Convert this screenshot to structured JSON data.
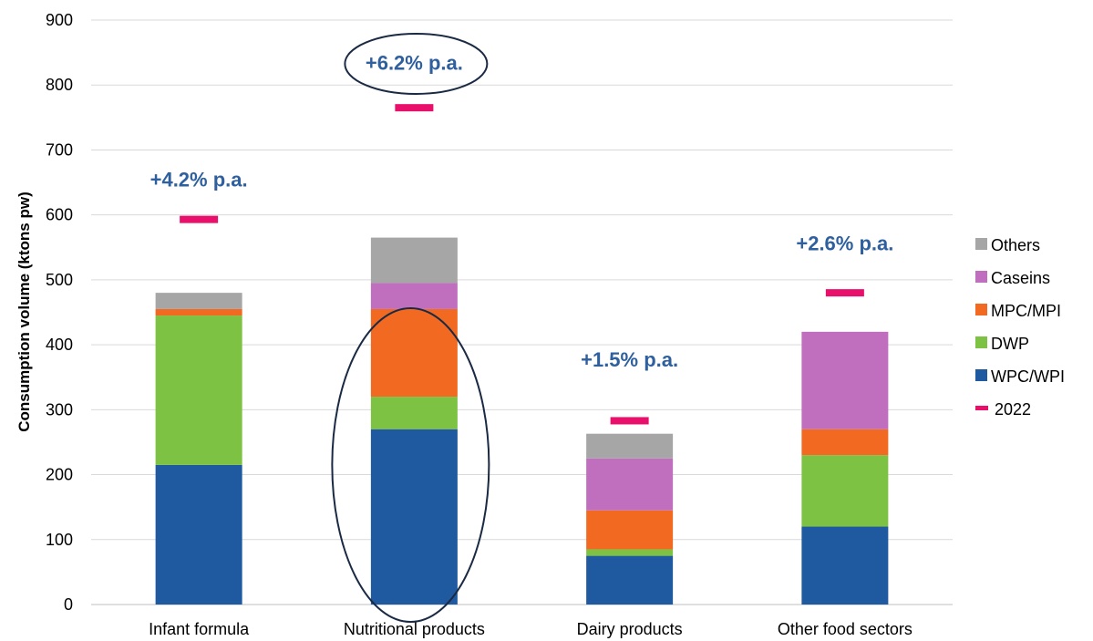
{
  "chart_data": {
    "type": "bar",
    "stacked": true,
    "ylabel": "Consumption volume (ktons pw)",
    "xlabel": "",
    "title": "",
    "ylim": [
      0,
      900
    ],
    "yticks": [
      0,
      100,
      200,
      300,
      400,
      500,
      600,
      700,
      800,
      900
    ],
    "grid": true,
    "legend_position": "right",
    "categories": [
      "Infant formula",
      "Nutritional products",
      "Dairy products",
      "Other food sectors"
    ],
    "series": [
      {
        "name": "WPC/WPI",
        "color": "#1F5AA1",
        "values": [
          215,
          270,
          75,
          120
        ]
      },
      {
        "name": "DWP",
        "color": "#7DC242",
        "values": [
          230,
          50,
          10,
          110
        ]
      },
      {
        "name": "MPC/MPI",
        "color": "#F26A21",
        "values": [
          10,
          135,
          60,
          40
        ]
      },
      {
        "name": "Caseins",
        "color": "#C06FBF",
        "values": [
          0,
          40,
          80,
          150
        ]
      },
      {
        "name": "Others",
        "color": "#A6A6A6",
        "values": [
          25,
          70,
          38,
          0
        ]
      }
    ],
    "markers": {
      "name": "2022",
      "color": "#E8106B",
      "values": [
        593,
        765,
        283,
        480
      ]
    },
    "growth_labels": [
      "+4.2% p.a.",
      "+6.2% p.a.",
      "+1.5% p.a.",
      "+2.6% p.a."
    ],
    "growth_label_values": [
      655,
      835,
      378,
      557
    ],
    "legend_order": [
      "Others",
      "Caseins",
      "MPC/MPI",
      "DWP",
      "WPC/WPI",
      "2022"
    ]
  }
}
